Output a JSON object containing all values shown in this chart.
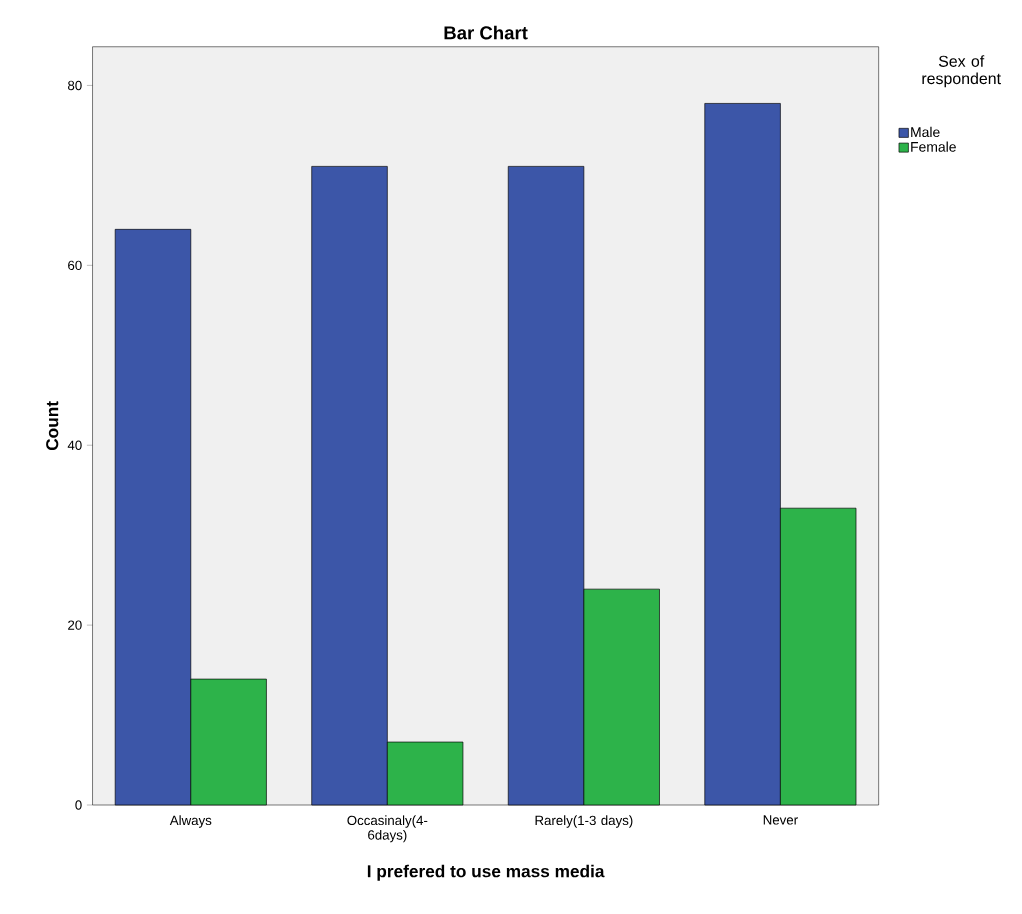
{
  "chart_data": {
    "type": "bar",
    "title": "Bar Chart",
    "xlabel": "I prefered to use mass media",
    "ylabel": "Count",
    "legend_title": "Sex of respondent",
    "categories": [
      "Always",
      "Occasinaly(4-6days)",
      "Rarely(1-3 days)",
      "Never"
    ],
    "series": [
      {
        "name": "Male",
        "color": "#3c56a8",
        "values": [
          64,
          71,
          71,
          78
        ]
      },
      {
        "name": "Female",
        "color": "#2db34a",
        "values": [
          14,
          7,
          24,
          33
        ]
      }
    ],
    "ylim": [
      0,
      84.3
    ],
    "yticks": [
      0,
      20,
      40,
      60,
      80
    ],
    "legend": "top right"
  }
}
